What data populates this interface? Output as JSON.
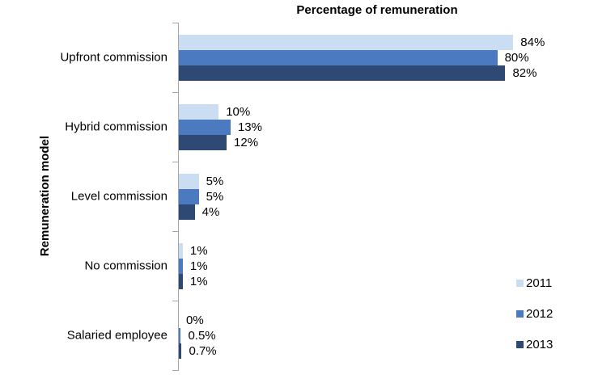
{
  "chart_data": {
    "type": "bar",
    "orientation": "horizontal",
    "title": "Percentage of remuneration",
    "xlabel": "",
    "ylabel": "Remuneration model",
    "xlim": [
      0,
      100
    ],
    "grid": false,
    "legend_position": "right",
    "categories": [
      "Upfront commission",
      "Hybrid commission",
      "Level commission",
      "No commission",
      "Salaried employee"
    ],
    "series": [
      {
        "name": "2011",
        "color": "#CADDF3",
        "values": [
          84,
          10,
          5,
          1,
          0
        ],
        "value_labels": [
          "84%",
          "10%",
          "5%",
          "1%",
          "0%"
        ]
      },
      {
        "name": "2012",
        "color": "#4B7AC1",
        "values": [
          80,
          13,
          5,
          1,
          0.5
        ],
        "value_labels": [
          "80%",
          "13%",
          "5%",
          "1%",
          "0.5%"
        ]
      },
      {
        "name": "2013",
        "color": "#2E4A74",
        "values": [
          82,
          12,
          4,
          1,
          0.7
        ],
        "value_labels": [
          "82%",
          "12%",
          "4%",
          "1%",
          "0.7%"
        ]
      }
    ]
  },
  "style": {
    "axis_color": "#A6A6A6",
    "text_color": "#000000",
    "background": "#FFFFFF"
  }
}
